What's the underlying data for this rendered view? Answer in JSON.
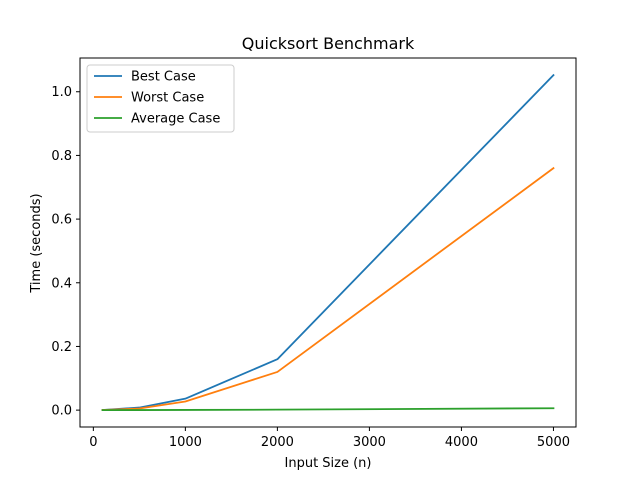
{
  "chart_data": {
    "type": "line",
    "title": "Quicksort Benchmark",
    "xlabel": "Input Size (n)",
    "ylabel": "Time (seconds)",
    "xlim": [
      -145,
      5245
    ],
    "ylim": [
      -0.053,
      1.106
    ],
    "x_ticks": [
      0,
      1000,
      2000,
      3000,
      4000,
      5000
    ],
    "y_ticks": [
      0.0,
      0.2,
      0.4,
      0.6,
      0.8,
      1.0
    ],
    "x_tick_labels": [
      "0",
      "1000",
      "2000",
      "3000",
      "4000",
      "5000"
    ],
    "y_tick_labels": [
      "0.0",
      "0.2",
      "0.4",
      "0.6",
      "0.8",
      "1.0"
    ],
    "grid": false,
    "legend_position": "upper-left",
    "series": [
      {
        "name": "Best Case",
        "color": "#1f77b4",
        "x": [
          100,
          500,
          1000,
          2000,
          5000
        ],
        "y": [
          0.0005,
          0.008,
          0.036,
          0.16,
          1.052
        ]
      },
      {
        "name": "Worst Case",
        "color": "#ff7f0e",
        "x": [
          100,
          500,
          1000,
          2000,
          5000
        ],
        "y": [
          0.0004,
          0.005,
          0.027,
          0.12,
          0.76
        ]
      },
      {
        "name": "Average Case",
        "color": "#2ca02c",
        "x": [
          100,
          500,
          1000,
          2000,
          5000
        ],
        "y": [
          0.0,
          0.0002,
          0.0006,
          0.0015,
          0.006
        ]
      }
    ]
  }
}
